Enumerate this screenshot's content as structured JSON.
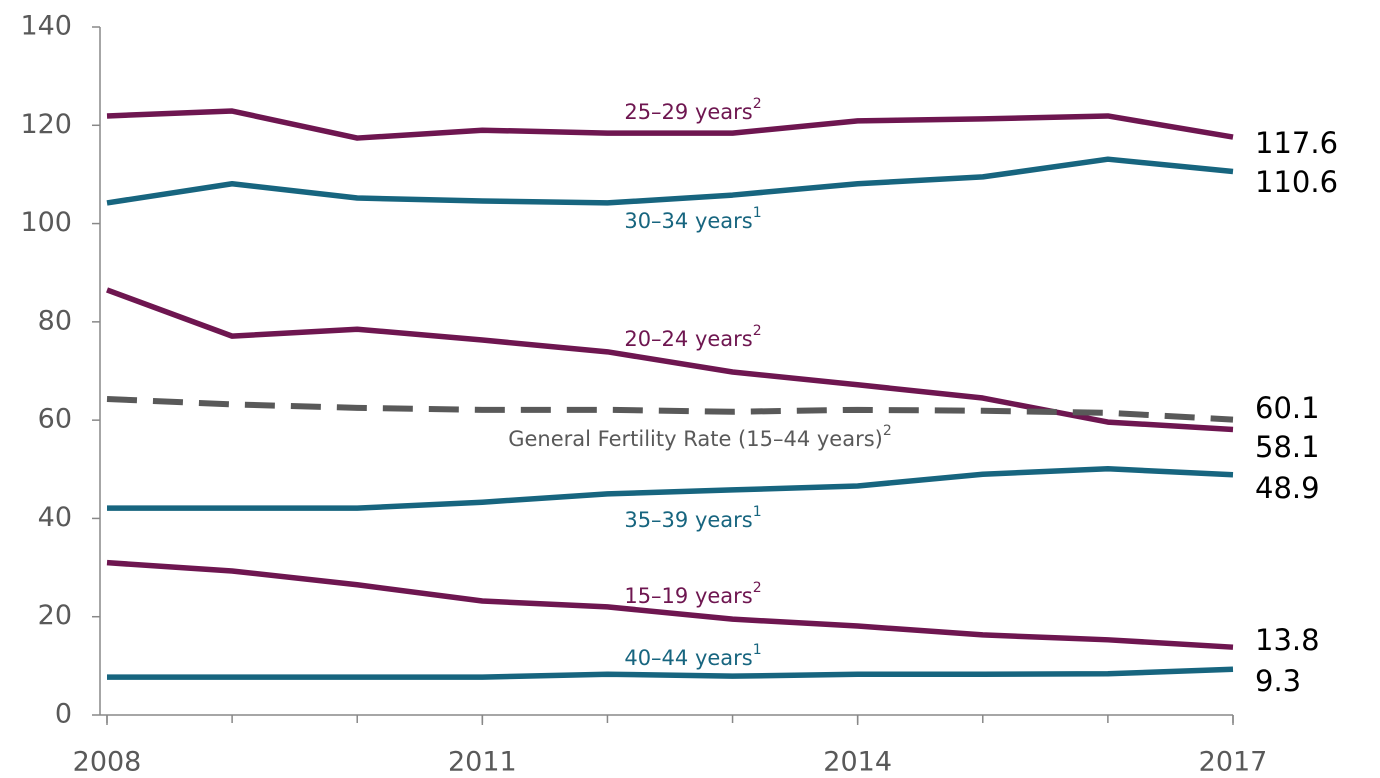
{
  "chart_data": {
    "type": "line",
    "x": [
      2008,
      2009,
      2010,
      2011,
      2012,
      2013,
      2014,
      2015,
      2016,
      2017
    ],
    "xlim": [
      2008,
      2017
    ],
    "xticks": [
      2008,
      2011,
      2014,
      2017
    ],
    "ylim": [
      0,
      140
    ],
    "yticks": [
      0,
      20,
      40,
      60,
      80,
      100,
      120,
      140
    ],
    "series": [
      {
        "name": "25–29 years",
        "footnote": "2",
        "color": "#6e1650",
        "dashed": false,
        "values": [
          121.9,
          122.9,
          117.4,
          119.0,
          118.4,
          118.4,
          120.9,
          121.3,
          121.9,
          117.6
        ]
      },
      {
        "name": "30–34 years",
        "footnote": "1",
        "color": "#17657f",
        "dashed": false,
        "values": [
          104.2,
          108.1,
          105.2,
          104.6,
          104.2,
          105.8,
          108.1,
          109.5,
          113.1,
          110.6
        ]
      },
      {
        "name": "20–24 years",
        "footnote": "2",
        "color": "#6e1650",
        "dashed": false,
        "values": [
          86.5,
          77.1,
          78.5,
          76.3,
          73.9,
          69.8,
          67.2,
          64.5,
          59.6,
          58.1
        ]
      },
      {
        "name": "General Fertility Rate (15–44 years)",
        "footnote": "2",
        "color": "#595959",
        "dashed": true,
        "values": [
          64.3,
          63.2,
          62.5,
          62.1,
          62.1,
          61.7,
          62.1,
          61.9,
          61.5,
          60.1
        ]
      },
      {
        "name": "35–39 years",
        "footnote": "1",
        "color": "#17657f",
        "dashed": false,
        "values": [
          42.1,
          42.1,
          42.1,
          43.3,
          45.0,
          45.8,
          46.6,
          49.0,
          50.1,
          48.9
        ]
      },
      {
        "name": "15–19 years",
        "footnote": "2",
        "color": "#6e1650",
        "dashed": false,
        "values": [
          31.0,
          29.3,
          26.5,
          23.2,
          22.0,
          19.5,
          18.1,
          16.3,
          15.3,
          13.8
        ]
      },
      {
        "name": "40–44 years",
        "footnote": "1",
        "color": "#17657f",
        "dashed": false,
        "values": [
          7.7,
          7.7,
          7.7,
          7.7,
          8.3,
          7.9,
          8.3,
          8.3,
          8.4,
          9.3
        ]
      }
    ]
  }
}
